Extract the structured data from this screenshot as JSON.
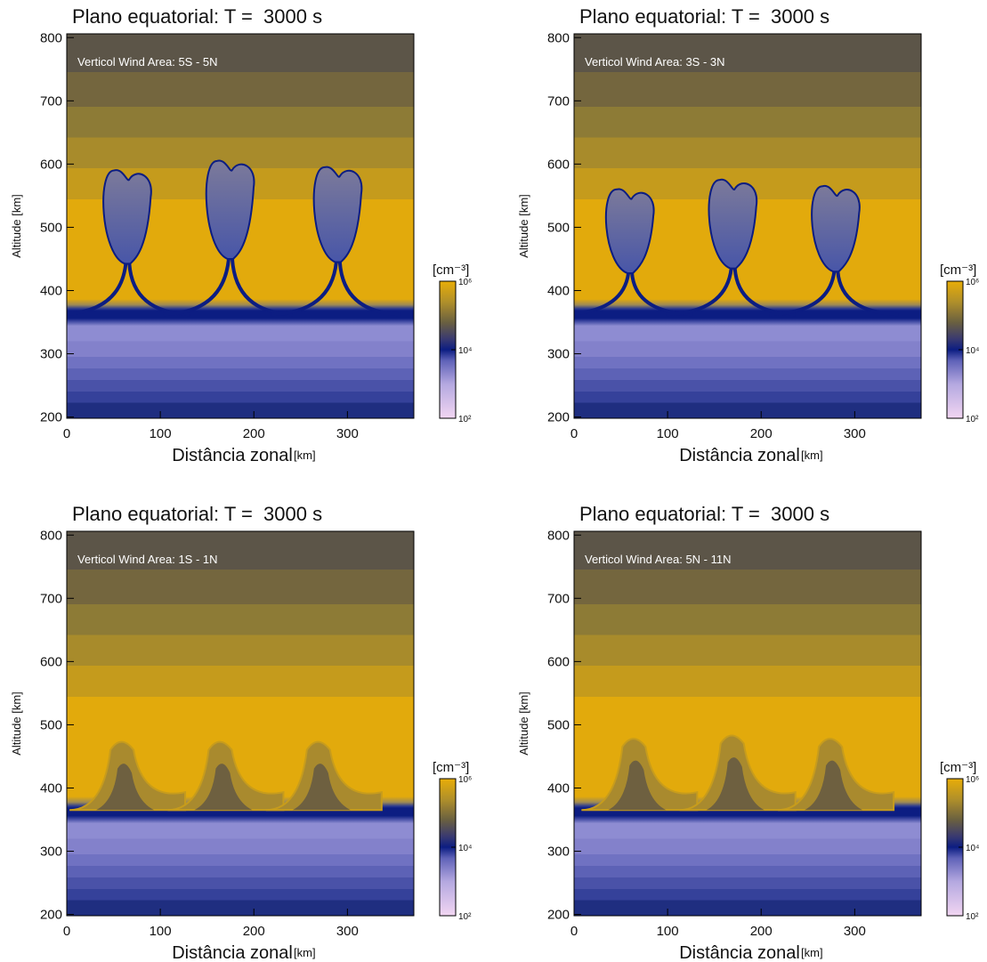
{
  "chart_data": [
    {
      "type": "contour",
      "title": "Plano equatorial: T =  3000 s",
      "annotation": "Verticol Wind Area: 5S - 5N",
      "x_label": "Distância zonal",
      "x_unit": "[km]",
      "y_label": "Altitude [km]",
      "xlim": [
        0,
        371
      ],
      "ylim": [
        198,
        806
      ],
      "xticks": [
        0,
        100,
        200,
        300
      ],
      "yticks": [
        200,
        300,
        400,
        500,
        600,
        700,
        800
      ],
      "colorbar": {
        "label": "[cm⁻³]",
        "lim": [
          100,
          1000000
        ],
        "log": true,
        "ticks": [
          {
            "value": 100,
            "label": "10²"
          },
          {
            "value": 10000,
            "label": "10⁴"
          },
          {
            "value": 1000000,
            "label": "10⁶"
          }
        ]
      },
      "plume_style": "bubble",
      "plumes": {
        "x": [
          65,
          175,
          290
        ],
        "top": [
          590,
          605,
          595
        ]
      }
    },
    {
      "type": "contour",
      "title": "Plano equatorial: T =  3000 s",
      "annotation": "Verticol Wind Area: 3S - 3N",
      "x_label": "Distância zonal",
      "x_unit": "[km]",
      "y_label": "Altitude [km]",
      "xlim": [
        0,
        371
      ],
      "ylim": [
        198,
        806
      ],
      "xticks": [
        0,
        100,
        200,
        300
      ],
      "yticks": [
        200,
        300,
        400,
        500,
        600,
        700,
        800
      ],
      "colorbar": {
        "label": "[cm⁻³]",
        "lim": [
          100,
          1000000
        ],
        "log": true,
        "ticks": [
          {
            "value": 100,
            "label": "10²"
          },
          {
            "value": 10000,
            "label": "10⁴"
          },
          {
            "value": 1000000,
            "label": "10⁶"
          }
        ]
      },
      "plume_style": "bubble",
      "plumes": {
        "x": [
          60,
          170,
          280
        ],
        "top": [
          560,
          575,
          565
        ]
      }
    },
    {
      "type": "contour",
      "title": "Plano equatorial: T =  3000 s",
      "annotation": "Verticol Wind Area: 1S - 1N",
      "x_label": "Distância zonal",
      "x_unit": "[km]",
      "y_label": "Altitude [km]",
      "xlim": [
        0,
        371
      ],
      "ylim": [
        198,
        806
      ],
      "xticks": [
        0,
        100,
        200,
        300
      ],
      "yticks": [
        200,
        300,
        400,
        500,
        600,
        700,
        800
      ],
      "colorbar": {
        "label": "[cm⁻³]",
        "lim": [
          100,
          1000000
        ],
        "log": true,
        "ticks": [
          {
            "value": 100,
            "label": "10²"
          },
          {
            "value": 10000,
            "label": "10⁴"
          },
          {
            "value": 1000000,
            "label": "10⁶"
          }
        ]
      },
      "plume_style": "hump",
      "plumes": {
        "x": [
          60,
          165,
          270
        ],
        "top": [
          480,
          480,
          480
        ]
      }
    },
    {
      "type": "contour",
      "title": "Plano equatorial: T =  3000 s",
      "annotation": "Verticol Wind Area: 5N - 11N",
      "x_label": "Distância zonal",
      "x_unit": "[km]",
      "y_label": "Altitude [km]",
      "xlim": [
        0,
        371
      ],
      "ylim": [
        198,
        806
      ],
      "xticks": [
        0,
        100,
        200,
        300
      ],
      "yticks": [
        200,
        300,
        400,
        500,
        600,
        700,
        800
      ],
      "colorbar": {
        "label": "[cm⁻³]",
        "lim": [
          100,
          1000000
        ],
        "log": true,
        "ticks": [
          {
            "value": 100,
            "label": "10²"
          },
          {
            "value": 10000,
            "label": "10⁴"
          },
          {
            "value": 1000000,
            "label": "10⁶"
          }
        ]
      },
      "plume_style": "hump",
      "plumes": {
        "x": [
          65,
          170,
          275
        ],
        "top": [
          485,
          490,
          485
        ]
      }
    }
  ]
}
